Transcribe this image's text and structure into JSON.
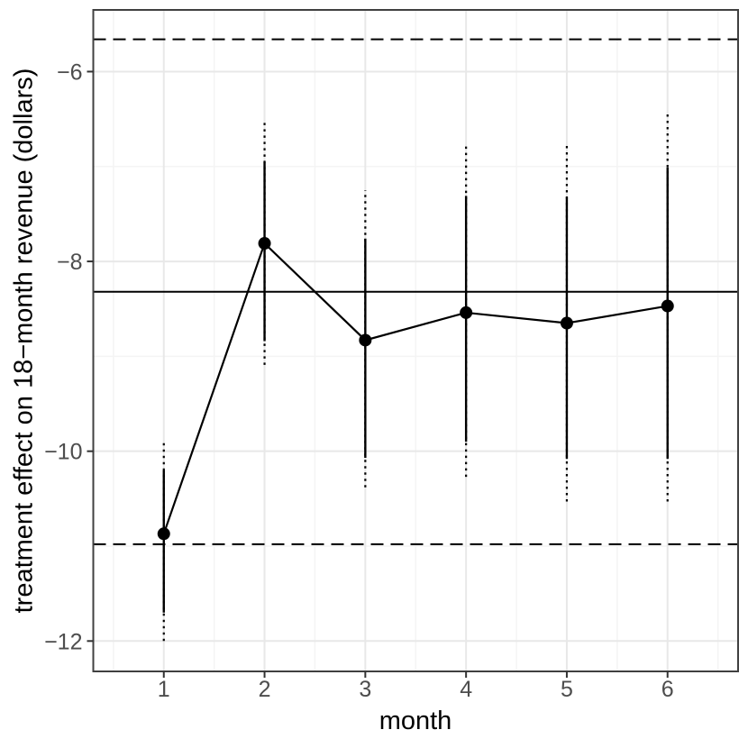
{
  "chart_data": {
    "type": "line",
    "title": "",
    "xlabel": "month",
    "ylabel": "treatment effect on 18−month revenue (dollars)",
    "xlim": [
      0.3,
      6.7
    ],
    "ylim": [
      -12.32,
      -5.35
    ],
    "grid": true,
    "legend": "none",
    "x_major_ticks": [
      1,
      2,
      3,
      4,
      5,
      6
    ],
    "x_tick_labels": [
      "1",
      "2",
      "3",
      "4",
      "5",
      "6"
    ],
    "x_minor_ticks": [
      0.5,
      1.5,
      2.5,
      3.5,
      4.5,
      5.5,
      6.5
    ],
    "y_major_ticks": [
      -6,
      -8,
      -10,
      -12
    ],
    "y_tick_labels": [
      "−6",
      "−8",
      "−10",
      "−12"
    ],
    "y_minor_ticks": [
      -7,
      -9,
      -11
    ],
    "series": [
      {
        "x": [
          1,
          2,
          3,
          4,
          5,
          6
        ],
        "y": [
          -10.87,
          -7.81,
          -8.83,
          -8.54,
          -8.65,
          -8.47
        ],
        "inner_ci_low": [
          -11.7,
          -8.84,
          -10.07,
          -9.9,
          -10.08,
          -10.08
        ],
        "inner_ci_high": [
          -10.2,
          -6.95,
          -7.76,
          -7.31,
          -7.32,
          -7.01
        ],
        "outer_ci_low": [
          -12.0,
          -9.09,
          -10.38,
          -10.27,
          -10.53,
          -10.53
        ],
        "outer_ci_high": [
          -9.89,
          -6.51,
          -7.25,
          -6.76,
          -6.77,
          -6.41
        ]
      }
    ],
    "reference_lines": [
      {
        "style": "solid",
        "value": -8.32
      },
      {
        "style": "dashed",
        "value": -5.66
      },
      {
        "style": "dashed",
        "value": -10.98
      }
    ],
    "colors": {
      "foreground": "#000000",
      "panel_border": "#404040",
      "tick": "#333333",
      "tick_label": "#4d4d4d",
      "grid_major": "#e8e8e8",
      "grid_minor": "#f4f4f4",
      "background": "#ffffff"
    }
  }
}
